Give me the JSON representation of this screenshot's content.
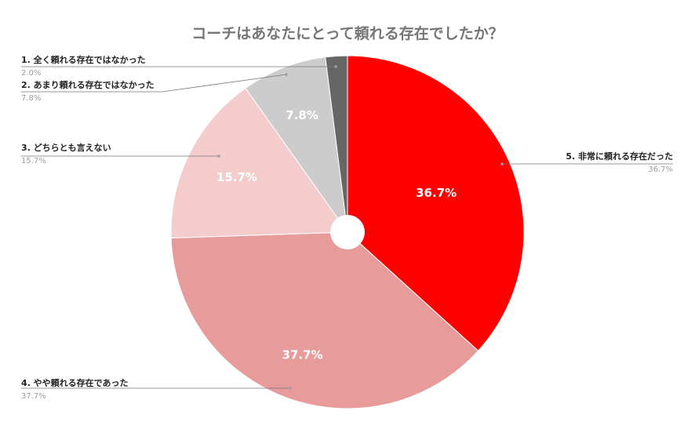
{
  "chart_data": {
    "type": "pie",
    "title": "コーチはあなたにとって頼れる存在でしたか？",
    "slices": [
      {
        "name": "5. 非常に頼れる存在だった",
        "value": 36.7,
        "label": "36.7%",
        "color": "#ff0000"
      },
      {
        "name": "4. やや頼れる存在であった",
        "value": 37.7,
        "label": "37.7%",
        "color": "#e89b9b"
      },
      {
        "name": "3. どちらとも言えない",
        "value": 15.7,
        "label": "15.7%",
        "color": "#f4cccc"
      },
      {
        "name": "2. あまり頼れる存在ではなかった",
        "value": 7.8,
        "label": "7.8%",
        "color": "#cccccc"
      },
      {
        "name": "1. 全く頼れる存在ではなかった",
        "value": 2.0,
        "label": "2.0%",
        "color": "#666666"
      }
    ]
  }
}
